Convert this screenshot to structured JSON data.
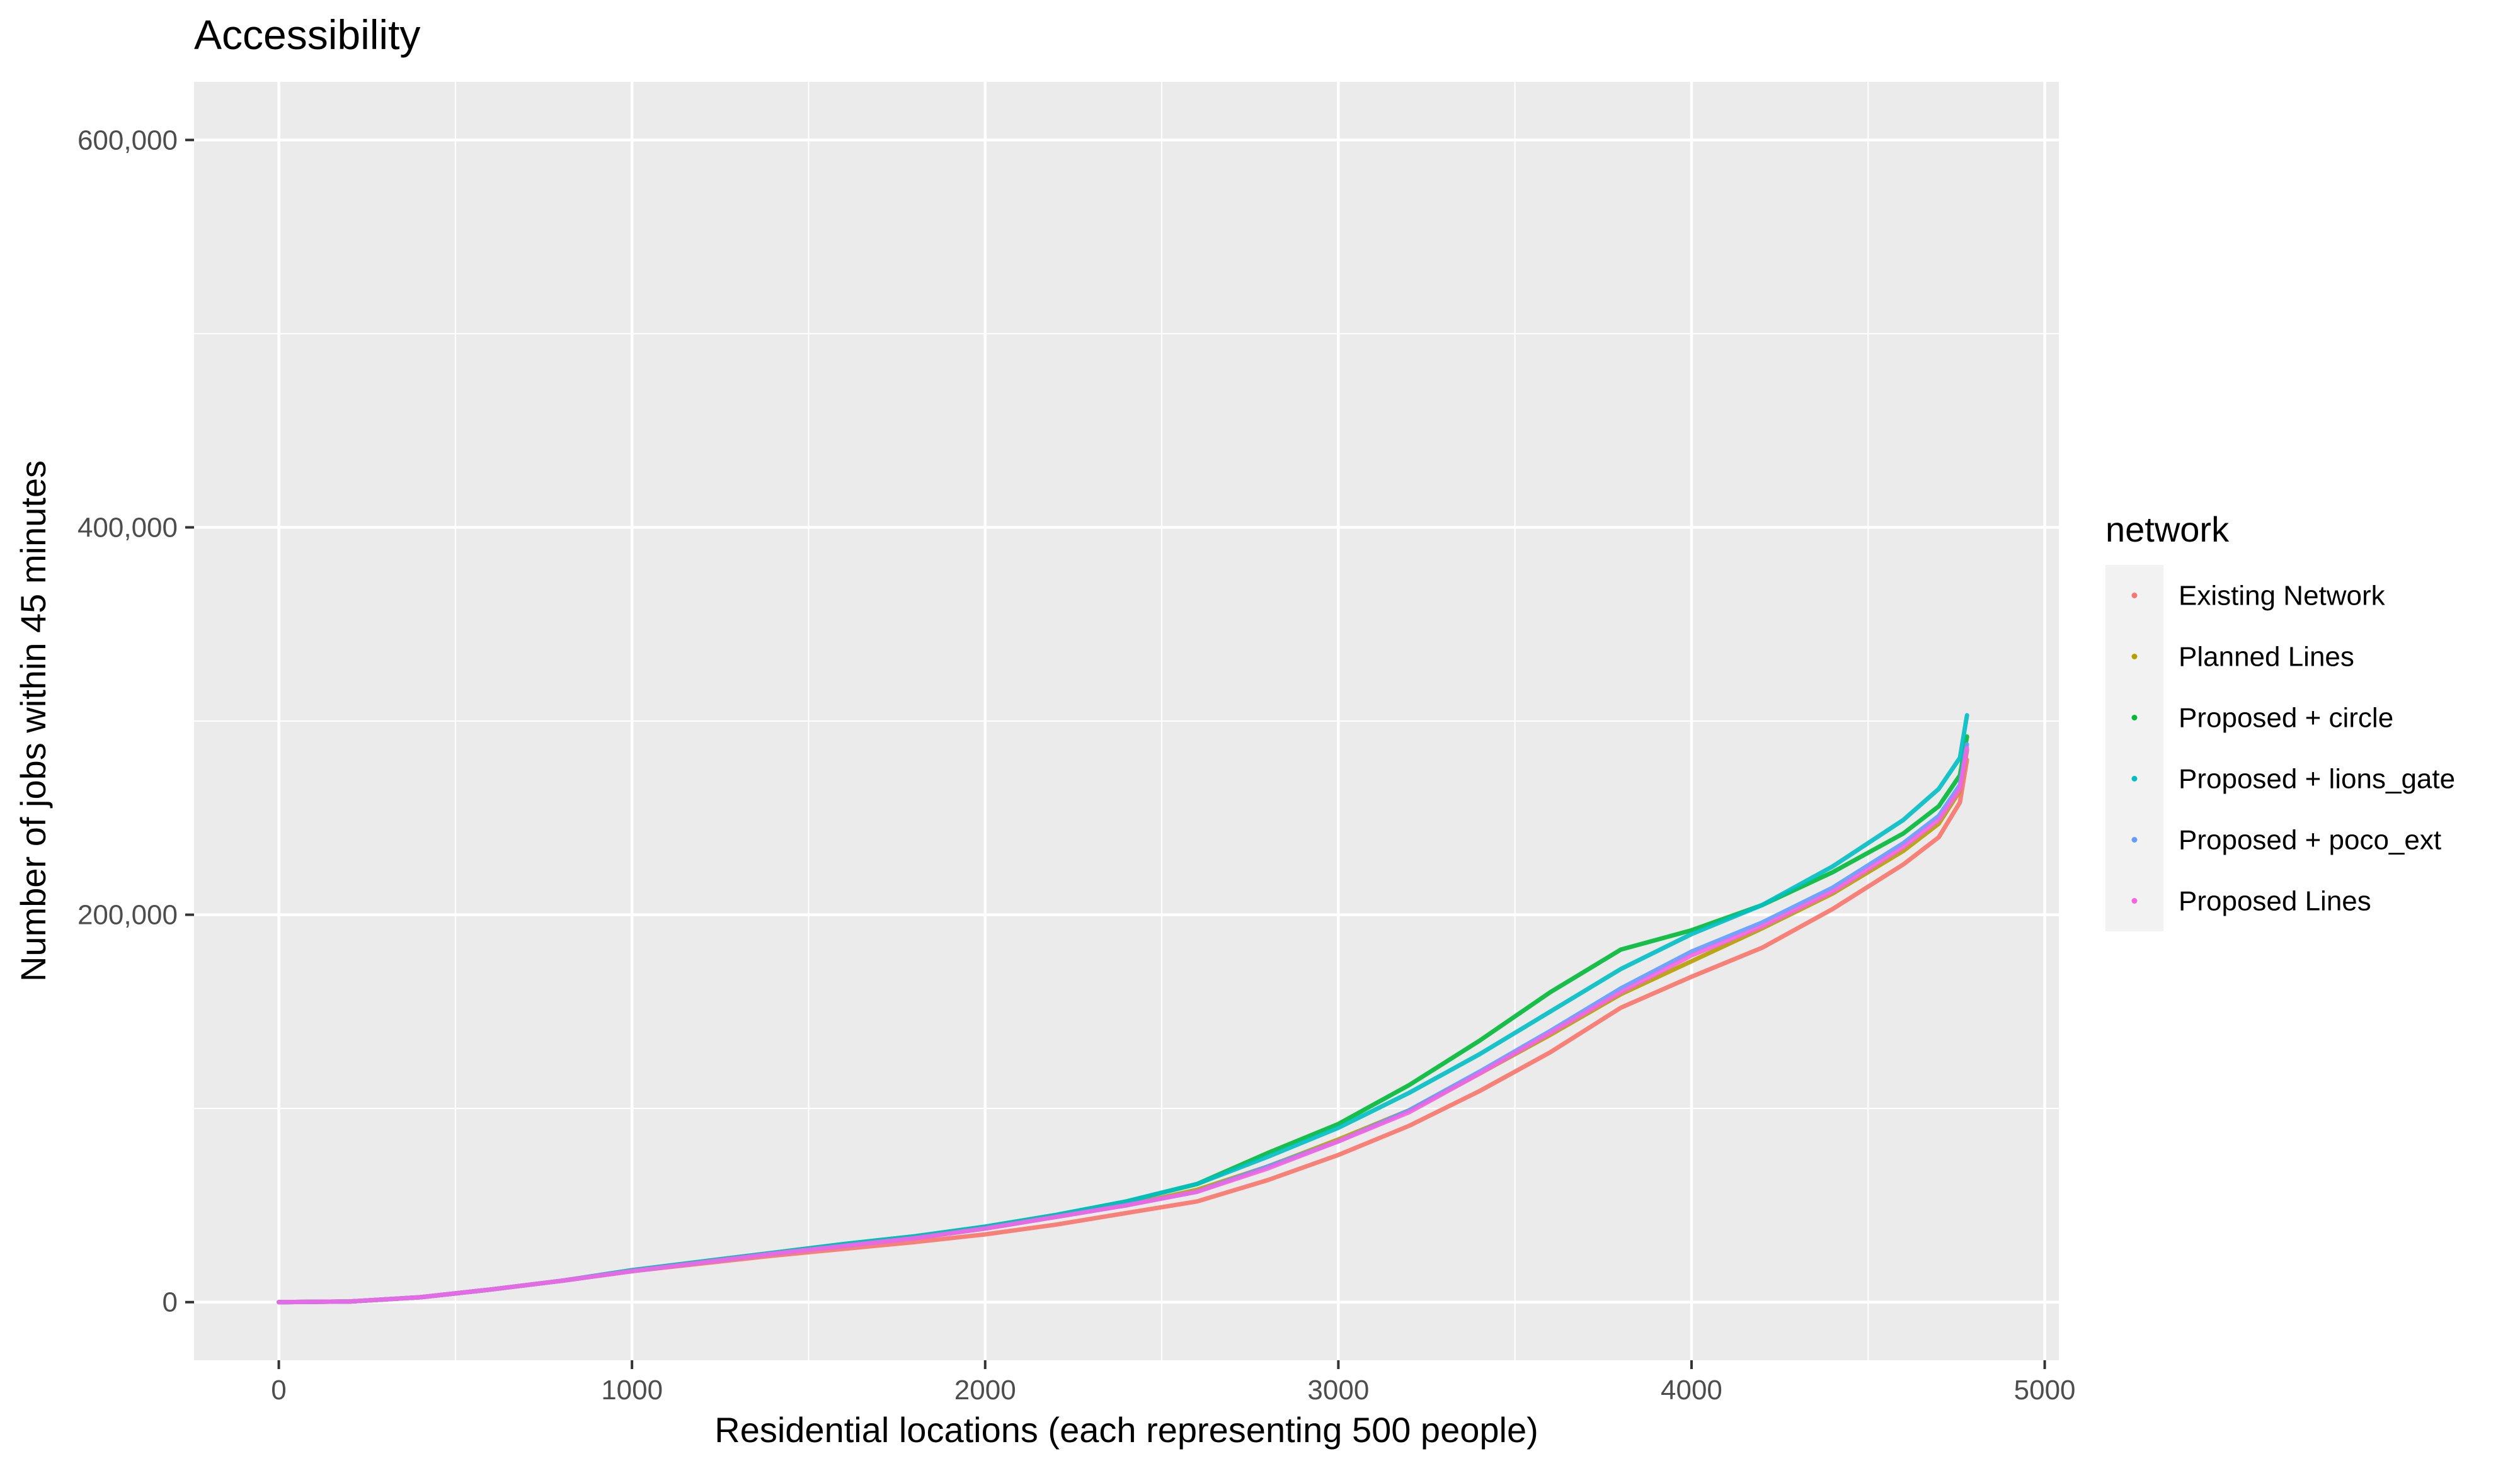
{
  "chart_data": {
    "type": "line",
    "title": "Accessibility",
    "xlabel": "Residential locations (each representing 500 people)",
    "ylabel": "Number of jobs within 45 minutes",
    "xlim": [
      -240,
      5040
    ],
    "ylim": [
      -30000,
      630000
    ],
    "x_ticks": [
      0,
      1000,
      2000,
      3000,
      4000,
      5000
    ],
    "x_tick_labels": [
      "0",
      "1000",
      "2000",
      "3000",
      "4000",
      "5000"
    ],
    "y_ticks": [
      0,
      200000,
      400000,
      600000
    ],
    "y_tick_labels": [
      "0",
      "200,000",
      "400,000",
      "600,000"
    ],
    "grid": true,
    "legend": {
      "title": "network",
      "position": "right"
    },
    "series": [
      {
        "name": "Existing Network",
        "color": "#F8766D",
        "x": [
          0,
          200,
          400,
          600,
          800,
          1000,
          1200,
          1400,
          1600,
          1800,
          2000,
          2200,
          2400,
          2600,
          2800,
          3000,
          3200,
          3400,
          3600,
          3800,
          4000,
          4200,
          4400,
          4600,
          4700,
          4760,
          4780
        ],
        "y": [
          0,
          300,
          2500,
          6500,
          11000,
          16000,
          20000,
          24000,
          27500,
          31000,
          35000,
          40000,
          46000,
          52000,
          63000,
          76000,
          91000,
          109000,
          129000,
          152000,
          168000,
          183000,
          203000,
          226000,
          240000,
          258000,
          280000
        ]
      },
      {
        "name": "Planned Lines",
        "color": "#B79F00",
        "x": [
          0,
          200,
          400,
          600,
          800,
          1000,
          1200,
          1400,
          1600,
          1800,
          2000,
          2200,
          2400,
          2600,
          2800,
          3000,
          3200,
          3400,
          3600,
          3800,
          4000,
          4200,
          4400,
          4600,
          4700,
          4760,
          4780
        ],
        "y": [
          0,
          300,
          2500,
          6500,
          11000,
          16000,
          20500,
          25000,
          29000,
          33000,
          38000,
          44000,
          50000,
          58000,
          70000,
          84000,
          99000,
          118000,
          138000,
          159000,
          176000,
          193000,
          211000,
          233000,
          247000,
          264000,
          285000
        ]
      },
      {
        "name": "Proposed + circle",
        "color": "#00BA38",
        "x": [
          0,
          200,
          400,
          600,
          800,
          1000,
          1200,
          1400,
          1600,
          1800,
          2000,
          2200,
          2400,
          2600,
          2800,
          3000,
          3200,
          3400,
          3600,
          3800,
          4000,
          4200,
          4400,
          4600,
          4700,
          4760,
          4780
        ],
        "y": [
          0,
          300,
          2500,
          6500,
          11000,
          16500,
          21000,
          25500,
          30000,
          34000,
          39000,
          45000,
          52000,
          61000,
          77000,
          92000,
          112000,
          135000,
          160000,
          182000,
          192000,
          205000,
          222000,
          242000,
          256000,
          272000,
          292000
        ]
      },
      {
        "name": "Proposed + lions_gate",
        "color": "#00BFC4",
        "x": [
          0,
          200,
          400,
          600,
          800,
          1000,
          1200,
          1400,
          1600,
          1800,
          2000,
          2200,
          2400,
          2600,
          2800,
          3000,
          3200,
          3400,
          3600,
          3800,
          4000,
          4200,
          4400,
          4600,
          4700,
          4760,
          4780
        ],
        "y": [
          0,
          300,
          2500,
          6500,
          11000,
          16500,
          21000,
          25500,
          30000,
          34000,
          39000,
          45000,
          52000,
          61000,
          75000,
          90000,
          108000,
          128000,
          150000,
          172000,
          190000,
          205000,
          225000,
          249000,
          265000,
          281000,
          303000
        ]
      },
      {
        "name": "Proposed + poco_ext",
        "color": "#619CFF",
        "x": [
          0,
          200,
          400,
          600,
          800,
          1000,
          1200,
          1400,
          1600,
          1800,
          2000,
          2200,
          2400,
          2600,
          2800,
          3000,
          3200,
          3400,
          3600,
          3800,
          4000,
          4200,
          4400,
          4600,
          4700,
          4760,
          4780
        ],
        "y": [
          0,
          300,
          2500,
          6500,
          11000,
          16000,
          20500,
          25000,
          29000,
          33000,
          38000,
          44000,
          50000,
          57000,
          70000,
          83000,
          99000,
          119000,
          140000,
          162000,
          181000,
          196000,
          214000,
          237000,
          251000,
          267000,
          288000
        ]
      },
      {
        "name": "Proposed Lines",
        "color": "#F564E3",
        "x": [
          0,
          200,
          400,
          600,
          800,
          1000,
          1200,
          1400,
          1600,
          1800,
          2000,
          2200,
          2400,
          2600,
          2800,
          3000,
          3200,
          3400,
          3600,
          3800,
          4000,
          4200,
          4400,
          4600,
          4700,
          4760,
          4780
        ],
        "y": [
          0,
          300,
          2500,
          6500,
          11000,
          16000,
          20500,
          25000,
          29000,
          33000,
          38000,
          44000,
          50000,
          57000,
          69000,
          83000,
          98000,
          118000,
          139000,
          160000,
          179000,
          194000,
          212000,
          235000,
          249000,
          265000,
          286000
        ]
      }
    ]
  }
}
